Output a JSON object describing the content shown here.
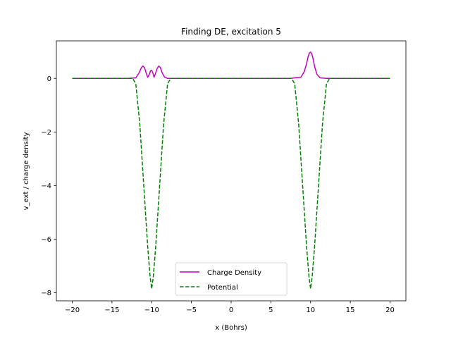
{
  "chart_data": {
    "type": "line",
    "title": "Finding DE, excitation 5",
    "xlabel": "x (Bohrs)",
    "ylabel": "v_ext / charge density",
    "xlim": [
      -22,
      22
    ],
    "ylim": [
      -8.3,
      1.4
    ],
    "xticks": [
      -20,
      -15,
      -10,
      -5,
      0,
      5,
      10,
      15,
      20
    ],
    "yticks": [
      -8,
      -6,
      -4,
      -2,
      0
    ],
    "xtick_labels": [
      "−20",
      "−15",
      "−10",
      "−5",
      "0",
      "5",
      "10",
      "15",
      "20"
    ],
    "ytick_labels": [
      "−8",
      "−6",
      "−4",
      "−2",
      "0"
    ],
    "grid": false,
    "legend_position": "lower-center",
    "series": [
      {
        "name": "Charge Density",
        "color": "#bf00bf",
        "style": "solid",
        "x": [
          -20,
          -13,
          -12,
          -11.6,
          -11.3,
          -11.1,
          -10.9,
          -10.7,
          -10.5,
          -10.3,
          -10.15,
          -10.0,
          -9.85,
          -9.7,
          -9.5,
          -9.3,
          -9.1,
          -8.9,
          -8.7,
          -8.4,
          -8.0,
          -7.0,
          7.5,
          8.8,
          9.2,
          9.5,
          9.7,
          9.85,
          10.0,
          10.15,
          10.3,
          10.5,
          10.8,
          11.2,
          12,
          20
        ],
        "y": [
          0,
          0,
          0.02,
          0.2,
          0.4,
          0.46,
          0.4,
          0.2,
          0.04,
          0.15,
          0.28,
          0.3,
          0.2,
          0.04,
          0.2,
          0.38,
          0.46,
          0.4,
          0.22,
          0.05,
          0.0,
          0,
          0,
          0.05,
          0.25,
          0.55,
          0.82,
          0.95,
          0.98,
          0.92,
          0.75,
          0.45,
          0.15,
          0.02,
          0,
          0
        ]
      },
      {
        "name": "Potential",
        "color": "#008000",
        "style": "dashed",
        "x": [
          -20,
          -12.4,
          -12.0,
          -11.5,
          -11.0,
          -10.5,
          -10.2,
          -10.0,
          -9.8,
          -9.5,
          -9.0,
          -8.5,
          -8.0,
          -7.6,
          7.6,
          8.0,
          8.5,
          9.0,
          9.5,
          9.8,
          10.0,
          10.2,
          10.5,
          11.0,
          11.5,
          12.0,
          12.4,
          20
        ],
        "y": [
          0,
          0,
          -0.2,
          -1.7,
          -4.0,
          -6.3,
          -7.4,
          -7.85,
          -7.4,
          -6.3,
          -4.0,
          -1.7,
          -0.2,
          0,
          0,
          -0.2,
          -1.7,
          -4.0,
          -6.3,
          -7.4,
          -7.85,
          -7.4,
          -6.3,
          -4.0,
          -1.7,
          -0.2,
          0,
          0
        ]
      }
    ]
  }
}
